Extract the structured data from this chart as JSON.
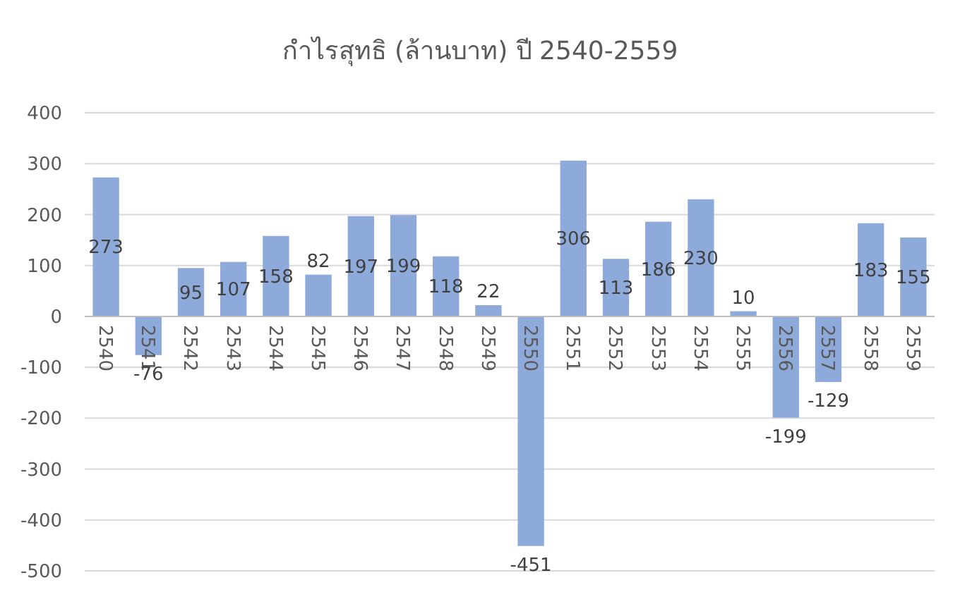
{
  "chart_data": {
    "type": "bar",
    "title": "กำไรสุทธิ (ล้านบาท) ปี 2540-2559",
    "categories": [
      "2540",
      "2541",
      "2542",
      "2543",
      "2544",
      "2545",
      "2546",
      "2547",
      "2548",
      "2549",
      "2550",
      "2551",
      "2552",
      "2553",
      "2554",
      "2555",
      "2556",
      "2557",
      "2558",
      "2559"
    ],
    "values": [
      273,
      -76,
      95,
      107,
      158,
      82,
      197,
      199,
      118,
      22,
      -451,
      306,
      113,
      186,
      230,
      10,
      -199,
      -129,
      183,
      155
    ],
    "color": "#8eaadb",
    "ylim": [
      -500,
      400
    ],
    "yticks": [
      -500,
      -400,
      -300,
      -200,
      -100,
      0,
      100,
      200,
      300,
      400
    ],
    "grid": "y",
    "data_labels": true
  }
}
